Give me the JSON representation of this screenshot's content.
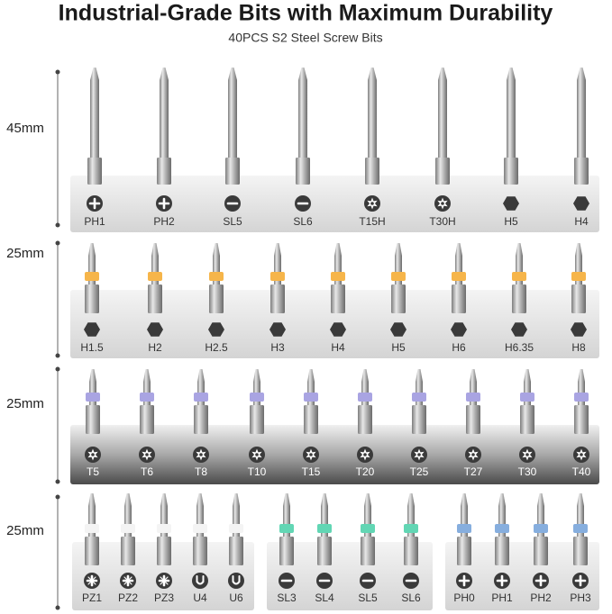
{
  "header": {
    "title": "Industrial-Grade Bits with Maximum Durability",
    "subtitle": "40PCS S2 Steel Screw Bits"
  },
  "rows": [
    {
      "length": "45mm",
      "groups": [
        [
          "PH1",
          "PH2",
          "SL5",
          "SL6",
          "T15H",
          "T30H",
          "H5",
          "H4"
        ]
      ]
    },
    {
      "length": "25mm",
      "groups": [
        [
          "H1.5",
          "H2",
          "H2.5",
          "H3",
          "H4",
          "H5",
          "H6",
          "H6.35",
          "H8"
        ]
      ]
    },
    {
      "length": "25mm",
      "groups": [
        [
          "T5",
          "T6",
          "T8",
          "T10",
          "T15",
          "T20",
          "T25",
          "T27",
          "T30",
          "T40"
        ]
      ]
    },
    {
      "length": "25mm",
      "groups": [
        [
          "PZ1",
          "PZ2",
          "PZ3",
          "U4",
          "U6"
        ],
        [
          "SL3",
          "SL4",
          "SL5",
          "SL6"
        ],
        [
          "PH0",
          "PH1",
          "PH2",
          "PH3"
        ]
      ]
    }
  ]
}
